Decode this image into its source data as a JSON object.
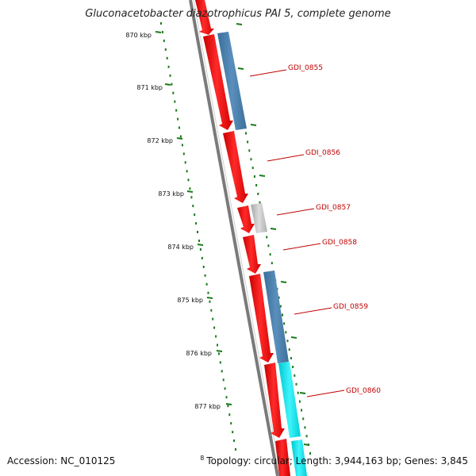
{
  "title": "Gluconacetobacter diazotrophicus PAI 5, complete genome",
  "footer": {
    "accession": "Accession: NC_010125",
    "topology_prefix": "8",
    "topology": "Topology: circular; Length: 3,944,163 bp; Genes: 3,845"
  },
  "colors": {
    "gene_red": "#ff0000",
    "blast_blue": "#4682b4",
    "blast_gray": "#c0c0c0",
    "blast_cyan": "#00e5ee",
    "tick_green": "#1a7a1a",
    "backbone": "#888888",
    "label_red": "#c00000"
  },
  "ruler": {
    "labels": [
      "870 kbp",
      "871 kbp",
      "872 kbp",
      "873 kbp",
      "874 kbp",
      "875 kbp",
      "876 kbp",
      "877 kbp"
    ]
  },
  "genes": [
    {
      "label": "GDI_0855"
    },
    {
      "label": "GDI_0856"
    },
    {
      "label": "GDI_0857"
    },
    {
      "label": "GDI_0858"
    },
    {
      "label": "GDI_0859"
    },
    {
      "label": "GDI_0860"
    }
  ]
}
